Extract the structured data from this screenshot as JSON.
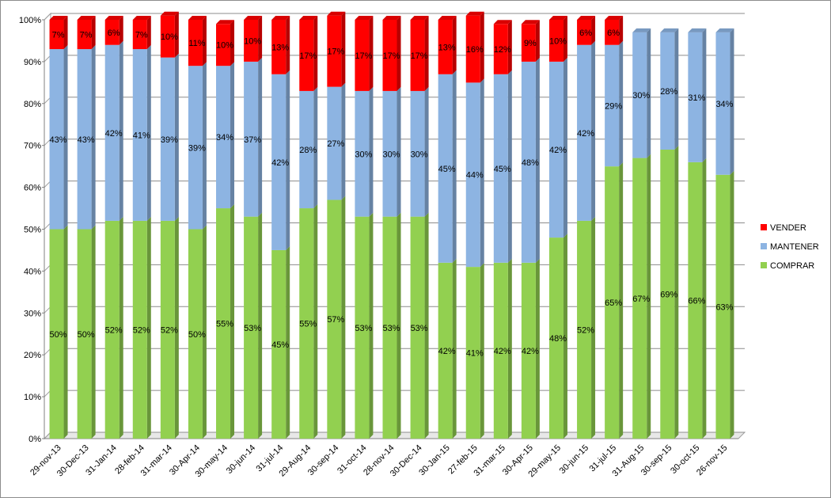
{
  "chart_data": {
    "type": "bar",
    "stacked": true,
    "title": "",
    "xlabel": "",
    "ylabel": "",
    "ylim": [
      0,
      100
    ],
    "yticks": [
      "0%",
      "10%",
      "20%",
      "30%",
      "40%",
      "50%",
      "60%",
      "70%",
      "80%",
      "90%",
      "100%"
    ],
    "categories": [
      "29-nov-13",
      "30-Dec-13",
      "31-Jan-14",
      "28-feb-14",
      "31-mar-14",
      "30-Apr-14",
      "30-may-14",
      "30-jun-14",
      "31-jul-14",
      "29-Aug-14",
      "30-sep-14",
      "31-oct-14",
      "28-nov-14",
      "30-Dec-14",
      "30-Jan-15",
      "27-feb-15",
      "31-mar-15",
      "30-Apr-15",
      "29-may-15",
      "30-jun-15",
      "31-jul-15",
      "31-Aug-15",
      "30-sep-15",
      "30-oct-15",
      "26-nov-15"
    ],
    "series": [
      {
        "name": "COMPRAR",
        "color": "#92D050",
        "values": [
          50,
          50,
          52,
          52,
          52,
          50,
          55,
          53,
          45,
          55,
          57,
          53,
          53,
          53,
          42,
          41,
          42,
          42,
          48,
          52,
          65,
          67,
          69,
          66,
          63
        ]
      },
      {
        "name": "MANTENER",
        "color": "#8DB4E2",
        "values": [
          43,
          43,
          42,
          41,
          39,
          39,
          34,
          37,
          42,
          28,
          27,
          30,
          30,
          30,
          45,
          44,
          45,
          48,
          42,
          42,
          29,
          30,
          28,
          31,
          34
        ]
      },
      {
        "name": "VENDER",
        "color": "#FF0000",
        "values": [
          7,
          7,
          6,
          7,
          10,
          11,
          10,
          10,
          13,
          17,
          17,
          17,
          17,
          17,
          13,
          16,
          12,
          9,
          10,
          6,
          6,
          0,
          0,
          0,
          0
        ]
      }
    ],
    "legend_position": "right",
    "legend_order": [
      "VENDER",
      "MANTENER",
      "COMPRAR"
    ],
    "grid": true
  }
}
